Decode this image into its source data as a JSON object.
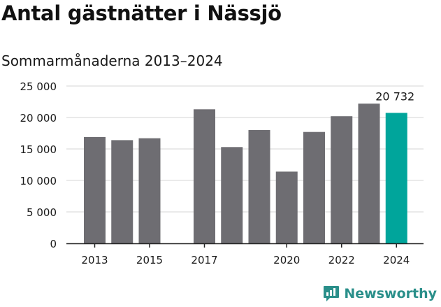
{
  "header": {
    "title": "Antal gästnätter i Nässjö",
    "subtitle": "Sommarmånaderna 2013–2024"
  },
  "brand": {
    "name": "Newsworthy",
    "icon": "newsworthy-logo-icon",
    "color": "#2a8f8a"
  },
  "chart_data": {
    "type": "bar",
    "title": "Antal gästnätter i Nässjö",
    "subtitle": "Sommarmånaderna 2013–2024",
    "xlabel": "",
    "ylabel": "",
    "categories": [
      "2013",
      "2014",
      "2015",
      "2016",
      "2017",
      "2018",
      "2019",
      "2020",
      "2021",
      "2022",
      "2023",
      "2024"
    ],
    "values": [
      16900,
      16400,
      16700,
      null,
      21300,
      15300,
      18000,
      11400,
      17700,
      20200,
      22200,
      20732
    ],
    "ylim": [
      0,
      25000
    ],
    "yticks": [
      0,
      5000,
      10000,
      15000,
      20000,
      25000
    ],
    "ytick_labels": [
      "0",
      "5 000",
      "10 000",
      "15 000",
      "20 000",
      "25 000"
    ],
    "xtick_labels": [
      "2013",
      "2015",
      "2017",
      "2020",
      "2022",
      "2024"
    ],
    "grid": true,
    "annotation": {
      "category": "2024",
      "text": "20 732"
    },
    "colors": {
      "default": "#6e6d72",
      "highlight": "#00a59b",
      "grid": "#d4d4d4",
      "axis": "#222222"
    },
    "highlight_category": "2024"
  }
}
